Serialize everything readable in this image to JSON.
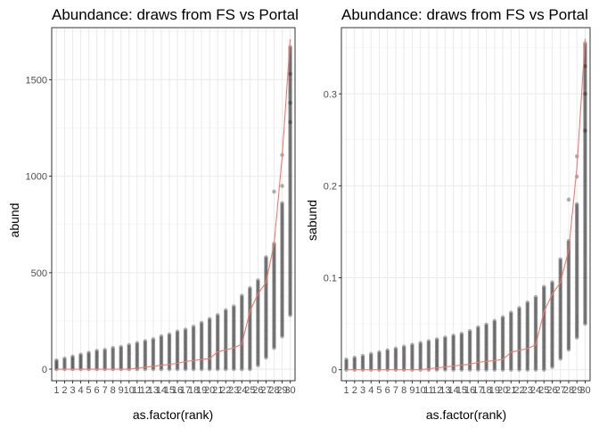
{
  "chart_data": [
    {
      "type": "scatter",
      "title": "Abundance: draws from FS vs Portal",
      "xlabel": "as.factor(rank)",
      "ylabel": "abund",
      "categories": [
        "1",
        "2",
        "3",
        "4",
        "5",
        "6",
        "7",
        "8",
        "9",
        "10",
        "11",
        "12",
        "13",
        "14",
        "15",
        "16",
        "17",
        "18",
        "19",
        "20",
        "21",
        "22",
        "23",
        "24",
        "25",
        "26",
        "27",
        "28",
        "29",
        "30"
      ],
      "ylim": [
        -60,
        1770
      ],
      "yticks": [
        0,
        500,
        1000,
        1500
      ],
      "grid": true,
      "draws": {
        "min": [
          0,
          0,
          0,
          0,
          0,
          0,
          0,
          0,
          0,
          0,
          0,
          0,
          0,
          0,
          0,
          0,
          0,
          0,
          0,
          0,
          0,
          0,
          0,
          0,
          0,
          20,
          60,
          110,
          170,
          280
        ],
        "max": [
          45,
          55,
          65,
          75,
          85,
          95,
          100,
          110,
          115,
          125,
          135,
          145,
          155,
          170,
          180,
          195,
          205,
          220,
          240,
          260,
          280,
          305,
          325,
          380,
          420,
          460,
          580,
          650,
          860,
          1670
        ],
        "outliers": [
          [
            28,
            920
          ],
          [
            29,
            950
          ],
          [
            29,
            1110
          ],
          [
            30,
            1280
          ],
          [
            30,
            1380
          ],
          [
            30,
            1530
          ]
        ]
      },
      "series": [
        {
          "color": "#F8766D",
          "values": [
            0,
            0,
            0,
            0,
            0,
            0,
            0,
            0,
            0,
            0,
            5,
            10,
            15,
            20,
            25,
            30,
            40,
            45,
            50,
            55,
            90,
            100,
            110,
            130,
            300,
            390,
            450,
            650,
            1100,
            1710
          ]
        }
      ],
      "point_color": "#000000",
      "point_alpha": 0.3
    },
    {
      "type": "scatter",
      "title": "Abundance: draws from FS vs Portal",
      "xlabel": "as.factor(rank)",
      "ylabel": "sabund",
      "categories": [
        "1",
        "2",
        "3",
        "4",
        "5",
        "6",
        "7",
        "8",
        "9",
        "10",
        "11",
        "12",
        "13",
        "14",
        "15",
        "16",
        "17",
        "18",
        "19",
        "20",
        "21",
        "22",
        "23",
        "24",
        "25",
        "26",
        "27",
        "28",
        "29",
        "30"
      ],
      "ylim": [
        -0.012,
        0.372
      ],
      "yticks": [
        0.0,
        0.1,
        0.2,
        0.3
      ],
      "grid": true,
      "draws": {
        "min": [
          0,
          0,
          0,
          0,
          0,
          0,
          0,
          0,
          0,
          0,
          0,
          0,
          0,
          0,
          0,
          0,
          0,
          0,
          0,
          0,
          0,
          0,
          0,
          0,
          0,
          0.003,
          0.012,
          0.022,
          0.035,
          0.05
        ],
        "max": [
          0.011,
          0.013,
          0.015,
          0.017,
          0.019,
          0.021,
          0.023,
          0.025,
          0.027,
          0.029,
          0.031,
          0.033,
          0.035,
          0.037,
          0.039,
          0.042,
          0.046,
          0.049,
          0.053,
          0.057,
          0.062,
          0.067,
          0.073,
          0.079,
          0.09,
          0.095,
          0.12,
          0.14,
          0.18,
          0.355
        ],
        "outliers": [
          [
            28,
            0.185
          ],
          [
            29,
            0.21
          ],
          [
            29,
            0.232
          ],
          [
            30,
            0.26
          ],
          [
            30,
            0.3
          ],
          [
            30,
            0.33
          ]
        ]
      },
      "series": [
        {
          "color": "#F8766D",
          "values": [
            0,
            0,
            0,
            0,
            0,
            0,
            0,
            0,
            0,
            0,
            0.001,
            0.002,
            0.003,
            0.004,
            0.005,
            0.006,
            0.008,
            0.009,
            0.01,
            0.011,
            0.019,
            0.021,
            0.023,
            0.027,
            0.063,
            0.082,
            0.095,
            0.13,
            0.22,
            0.36
          ]
        }
      ],
      "point_color": "#000000",
      "point_alpha": 0.3
    }
  ]
}
